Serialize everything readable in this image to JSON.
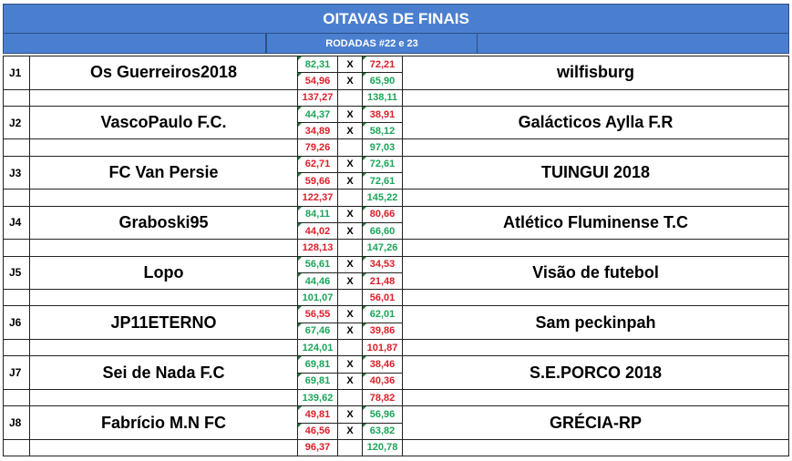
{
  "title": "OITAVAS DE FINAIS",
  "subtitle": "RODADAS #22 e 23",
  "vs": "X",
  "matches": [
    {
      "id": "J1",
      "home": "Os Guerreiros2018",
      "away": "wilfisburg",
      "rounds": [
        {
          "h": "82,31",
          "hc": "green",
          "a": "72,21",
          "ac": "red"
        },
        {
          "h": "54,96",
          "hc": "red",
          "a": "65,90",
          "ac": "green"
        }
      ],
      "total": {
        "h": "137,27",
        "hc": "red",
        "a": "138,11",
        "ac": "green"
      }
    },
    {
      "id": "J2",
      "home": "VascoPaulo F.C.",
      "away": "Galácticos Aylla F.R",
      "rounds": [
        {
          "h": "44,37",
          "hc": "green",
          "a": "38,91",
          "ac": "red"
        },
        {
          "h": "34,89",
          "hc": "red",
          "a": "58,12",
          "ac": "green"
        }
      ],
      "total": {
        "h": "79,26",
        "hc": "red",
        "a": "97,03",
        "ac": "green"
      }
    },
    {
      "id": "J3",
      "home": "FC Van Persie",
      "away": "TUINGUI 2018",
      "rounds": [
        {
          "h": "62,71",
          "hc": "red",
          "a": "72,61",
          "ac": "green"
        },
        {
          "h": "59,66",
          "hc": "red",
          "a": "72,61",
          "ac": "green"
        }
      ],
      "total": {
        "h": "122,37",
        "hc": "red",
        "a": "145,22",
        "ac": "green"
      }
    },
    {
      "id": "J4",
      "home": "Graboski95",
      "away": "Atlético Fluminense T.C",
      "rounds": [
        {
          "h": "84,11",
          "hc": "green",
          "a": "80,66",
          "ac": "red"
        },
        {
          "h": "44,02",
          "hc": "red",
          "a": "66,60",
          "ac": "green"
        }
      ],
      "total": {
        "h": "128,13",
        "hc": "red",
        "a": "147,26",
        "ac": "green"
      }
    },
    {
      "id": "J5",
      "home": "Lopo",
      "away": "Visão de futebol",
      "rounds": [
        {
          "h": "56,61",
          "hc": "green",
          "a": "34,53",
          "ac": "red"
        },
        {
          "h": "44,46",
          "hc": "green",
          "a": "21,48",
          "ac": "red"
        }
      ],
      "total": {
        "h": "101,07",
        "hc": "green",
        "a": "56,01",
        "ac": "red"
      }
    },
    {
      "id": "J6",
      "home": "JP11ETERNO",
      "away": "Sam peckinpah",
      "rounds": [
        {
          "h": "56,55",
          "hc": "red",
          "a": "62,01",
          "ac": "green"
        },
        {
          "h": "67,46",
          "hc": "green",
          "a": "39,86",
          "ac": "red"
        }
      ],
      "total": {
        "h": "124,01",
        "hc": "green",
        "a": "101,87",
        "ac": "red"
      }
    },
    {
      "id": "J7",
      "home": "Sei de Nada F.C",
      "away": "S.E.PORCO 2018",
      "rounds": [
        {
          "h": "69,81",
          "hc": "green",
          "a": "38,46",
          "ac": "red"
        },
        {
          "h": "69,81",
          "hc": "green",
          "a": "40,36",
          "ac": "red"
        }
      ],
      "total": {
        "h": "139,62",
        "hc": "green",
        "a": "78,82",
        "ac": "red"
      }
    },
    {
      "id": "J8",
      "home": "Fabrício M.N FC",
      "away": "GRÉCIA-RP",
      "rounds": [
        {
          "h": "49,81",
          "hc": "red",
          "a": "56,96",
          "ac": "green"
        },
        {
          "h": "46,56",
          "hc": "red",
          "a": "63,82",
          "ac": "green"
        }
      ],
      "total": {
        "h": "96,37",
        "hc": "red",
        "a": "120,78",
        "ac": "green"
      }
    }
  ],
  "colors": {
    "header": "#4a7fd0",
    "green": "#1ea35a",
    "red": "#d9202a"
  }
}
